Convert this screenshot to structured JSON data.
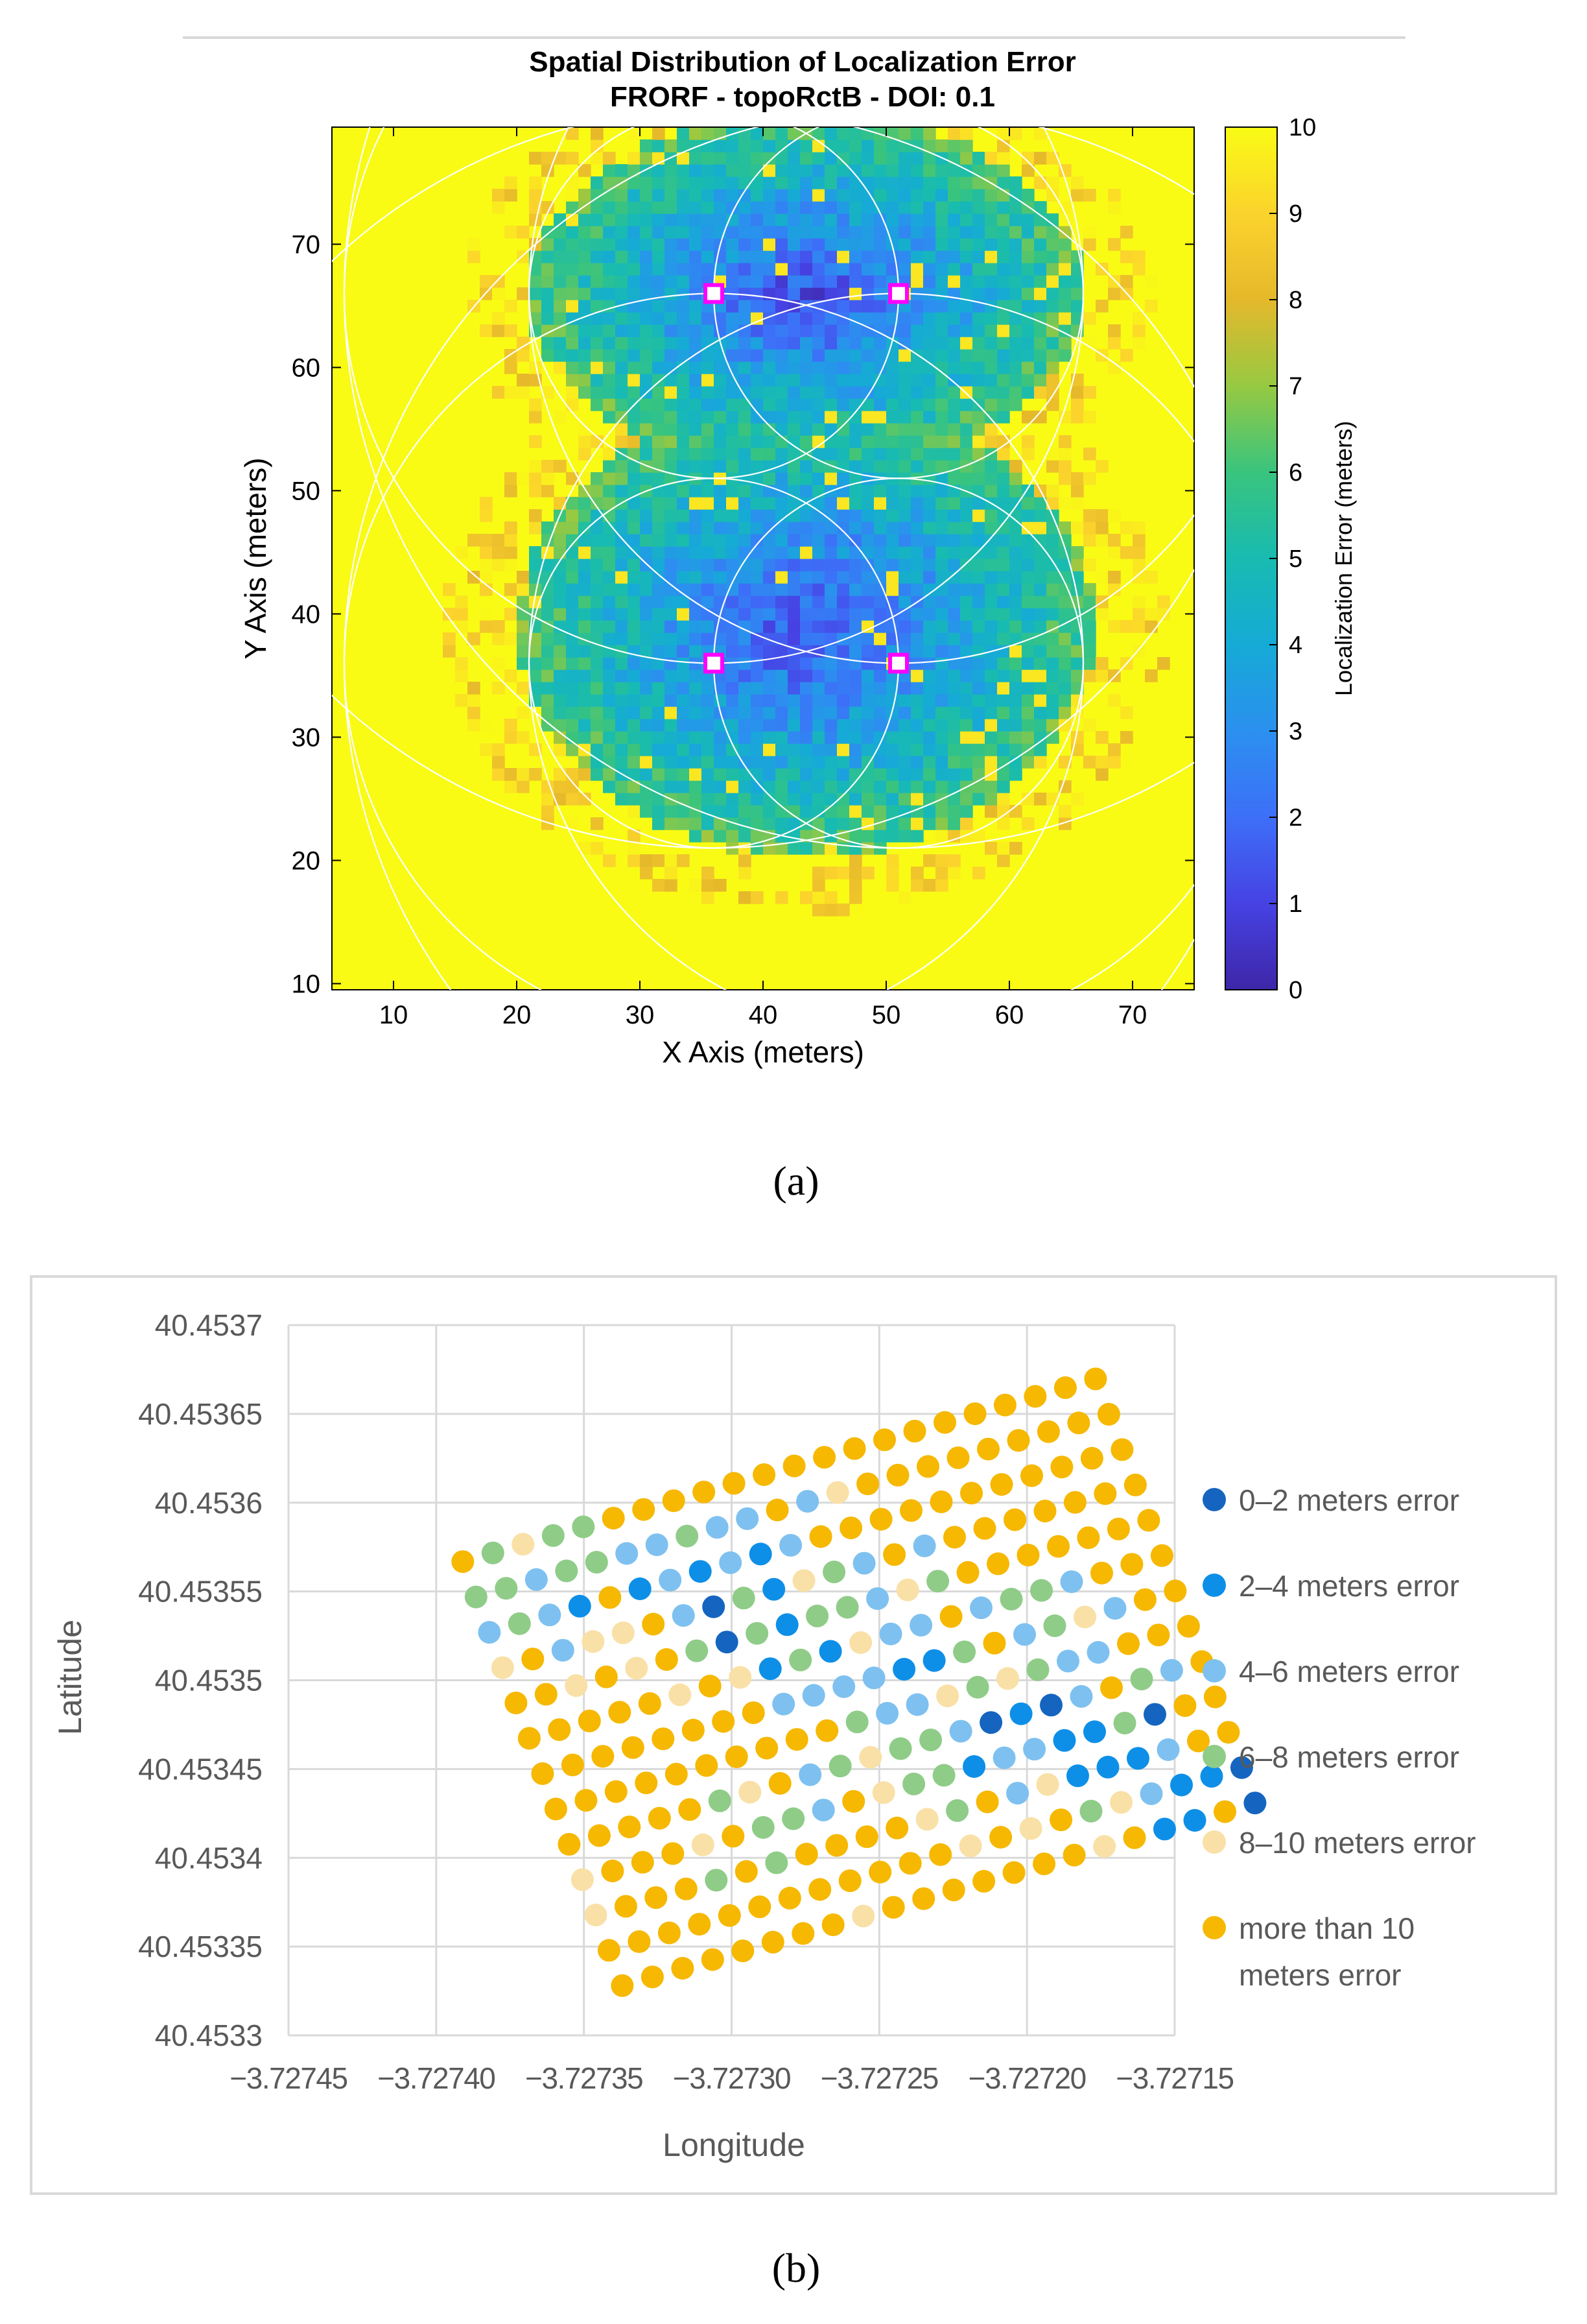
{
  "chart_data": [
    {
      "type": "heatmap",
      "title": "Spatial Distribution of Localization Error",
      "subtitle": "FRORF - topoRctB - DOI: 0.1",
      "xlabel": "X Axis (meters)",
      "ylabel": "Y Axis (meters)",
      "xlim": [
        5,
        75
      ],
      "ylim": [
        9.5,
        79.5
      ],
      "xticks": [
        10,
        20,
        30,
        40,
        50,
        60,
        70
      ],
      "yticks": [
        10,
        20,
        30,
        40,
        50,
        60,
        70
      ],
      "colorbar": {
        "label": "Localization Error (meters)",
        "range": [
          0,
          10
        ],
        "ticks": [
          0,
          1,
          2,
          3,
          4,
          5,
          6,
          7,
          8,
          9,
          10
        ]
      },
      "nodes": [
        {
          "x": 36,
          "y": 66
        },
        {
          "x": 51,
          "y": 66
        },
        {
          "x": 36,
          "y": 36
        },
        {
          "x": 51,
          "y": 36
        }
      ],
      "ring_radii": [
        15,
        30,
        45
      ],
      "panel_label": "(a)"
    },
    {
      "type": "scatter",
      "xlabel": "Longitude",
      "ylabel": "Latitude",
      "xlim": [
        -3.72745,
        -3.72715
      ],
      "ylim": [
        40.4533,
        40.4537
      ],
      "xtick_labels": [
        "−3.72745",
        "−3.72740",
        "−3.72735",
        "−3.72730",
        "−3.72725",
        "−3.72720",
        "−3.72715"
      ],
      "ytick_labels": [
        "40.4533",
        "40.45335",
        "40.4534",
        "40.45345",
        "40.4535",
        "40.45355",
        "40.4536",
        "40.45365",
        "40.4537"
      ],
      "categories": [
        {
          "name": "0–2 meters error",
          "color": "#1565c0"
        },
        {
          "name": "2–4 meters error",
          "color": "#0d8fe8"
        },
        {
          "name": "4–6 meters error",
          "color": "#7ec1f0"
        },
        {
          "name": "6–8 meters error",
          "color": "#8fcc88"
        },
        {
          "name": "8–10 meters error",
          "color": "#f9e0a6"
        },
        {
          "name": "more than 10 meters error",
          "color": "#f6b800"
        }
      ],
      "legend_lines": [
        [
          "0–2 meters error"
        ],
        [
          "2–4 meters error"
        ],
        [
          "4–6 meters error"
        ],
        [
          "6–8 meters error"
        ],
        [
          "8–10 meters error"
        ],
        [
          "more than 10",
          "meters error"
        ]
      ],
      "grid_model": {
        "rows": 13,
        "cols": 22,
        "origin": {
          "lon": -3.727337,
          "lat": 40.453328
        },
        "col_step": {
          "lon": 1.02e-05,
          "lat": 4.9e-06
        },
        "row_step": {
          "lon": -4.5e-06,
          "lat": 1.99e-05
        }
      },
      "error_class_rows": [
        "5555555545555555451150",
        "5555555555554545342110",
        "4555353555543524111255",
        "4555453325433122113055",
        "5555534523433201025325",
        "5555555555322434322555",
        "5555555522221135234255",
        "5555545413142252332555",
        "5545453031332435555555",
        "4524452031432525555555",
        "2321512121255555555555",
        "3323322322524555555555",
        "5343355555555555555555"
      ],
      "panel_label": "(b)"
    }
  ]
}
